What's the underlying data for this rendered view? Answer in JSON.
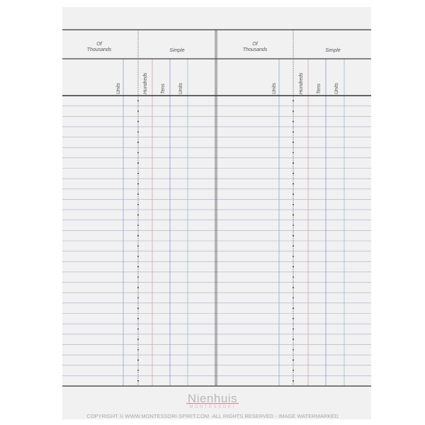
{
  "sheet": {
    "left_half": {
      "group1": {
        "line1": "Of",
        "line2": "Thousands"
      },
      "group2": "Simple",
      "columns": [
        "Units",
        "Hundreds",
        "Tens",
        "Units"
      ]
    },
    "right_half": {
      "group1": {
        "line1": "Of",
        "line2": "Thousands"
      },
      "group2": "Simple",
      "columns": [
        "Units",
        "Hundreds",
        "Tens",
        "Units"
      ]
    },
    "row_count": 28
  },
  "colors": {
    "units_blue": "#8fa6c8",
    "hundreds_red": "#d9a0a8",
    "tens_blue": "#8f98cc",
    "units_teal": "#8fc4c0"
  },
  "watermark": {
    "brand": "Nienhuis",
    "sub": "MONTESSORI",
    "copyright": "COPYRIGHT © WWW.MONTESSORI-SPIRIT.COM -ALL RIGHTS RESERVED - IMAGE WATERMARKED"
  }
}
